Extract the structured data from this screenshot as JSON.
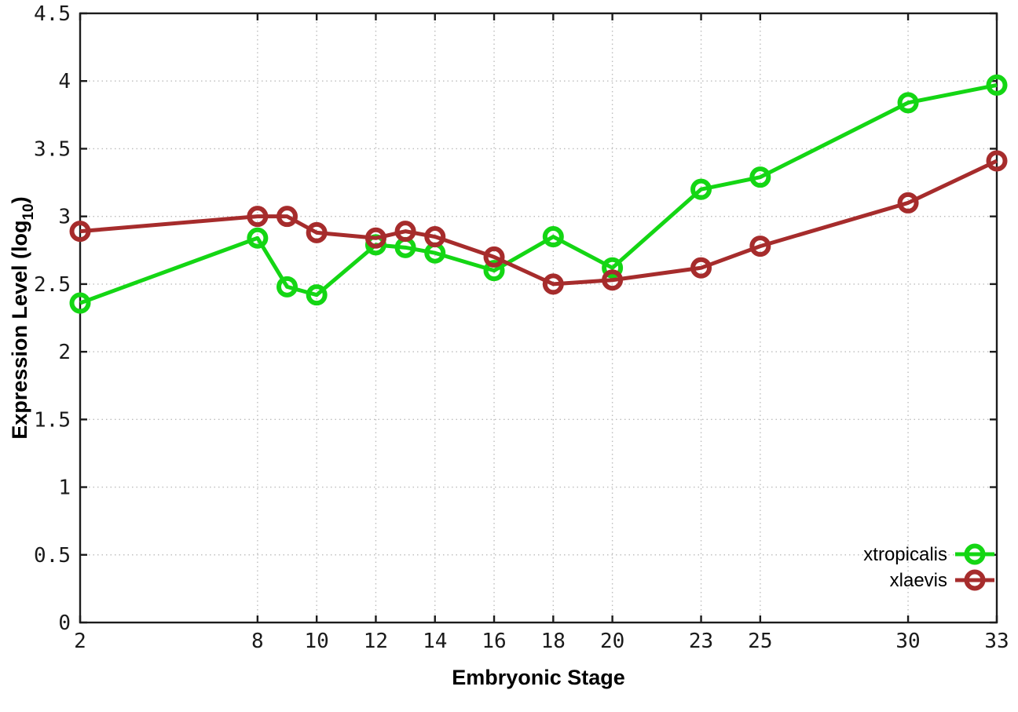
{
  "figure": {
    "background": "#ffffff",
    "border_color": "#1c1c1c",
    "grid_color": "#bdbdbd",
    "tick_color": "#1a1a1a",
    "text_color": "#000000"
  },
  "chart_data": {
    "type": "line",
    "title": "",
    "xlabel": "Embryonic Stage",
    "ylabel_main": "Expression Level (log",
    "ylabel_sub": "10",
    "ylabel_end": ")",
    "xlim": [
      2,
      33
    ],
    "ylim": [
      0,
      4.5
    ],
    "grid": true,
    "legend_position": "inside-bottom-right",
    "xticks": [
      2,
      8,
      10,
      12,
      14,
      16,
      18,
      20,
      23,
      25,
      30,
      33
    ],
    "xtick_labels": [
      "2",
      "8",
      "10",
      "12",
      "14",
      "16",
      "18",
      "20",
      "23",
      "25",
      "30",
      "33"
    ],
    "yticks": [
      0,
      0.5,
      1,
      1.5,
      2,
      2.5,
      3,
      3.5,
      4,
      4.5
    ],
    "ytick_labels": [
      "0",
      "0.5",
      "1",
      "1.5",
      "2",
      "2.5",
      "3",
      "3.5",
      "4",
      "4.5"
    ],
    "x": [
      2,
      8,
      9,
      10,
      12,
      13,
      14,
      16,
      18,
      20,
      23,
      25,
      30,
      33
    ],
    "series": [
      {
        "name": "xtropicalis",
        "color": "#14d614",
        "marker": "open-circle",
        "values": [
          2.36,
          2.84,
          2.48,
          2.42,
          2.79,
          2.77,
          2.73,
          2.6,
          2.85,
          2.62,
          3.2,
          3.29,
          3.84,
          3.97
        ]
      },
      {
        "name": "xlaevis",
        "color": "#a62c2c",
        "marker": "open-circle",
        "values": [
          2.89,
          3.0,
          3.0,
          2.88,
          2.84,
          2.89,
          2.85,
          2.7,
          2.5,
          2.53,
          2.62,
          2.78,
          3.1,
          3.41
        ]
      }
    ]
  },
  "legend": {
    "items": [
      {
        "label": "xtropicalis"
      },
      {
        "label": "xlaevis"
      }
    ]
  }
}
